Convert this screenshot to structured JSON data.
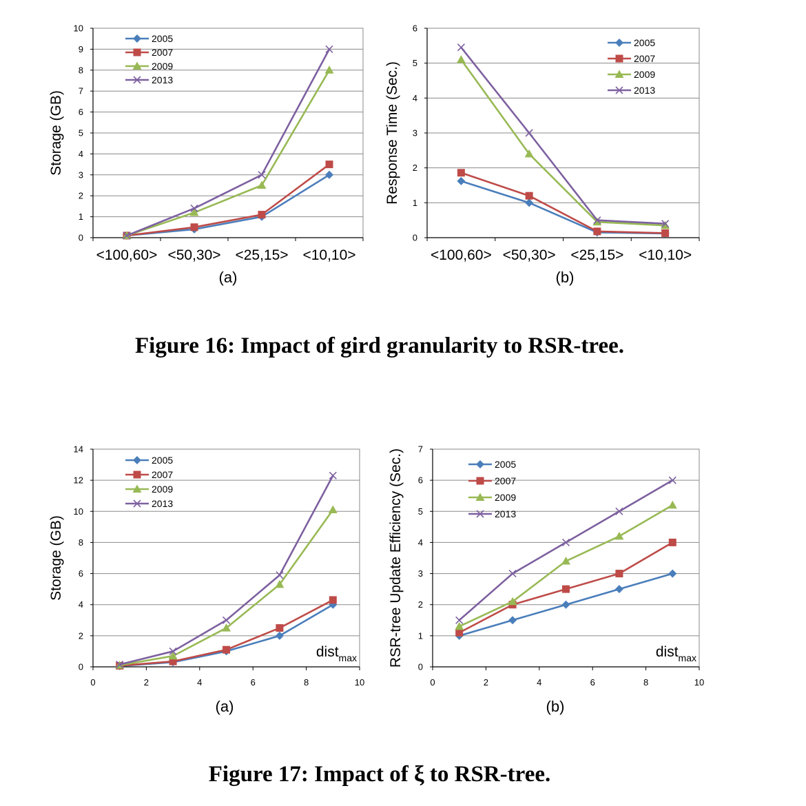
{
  "colors": {
    "2005": "#4a7ebb",
    "2007": "#be4b48",
    "2009": "#98b954",
    "2013": "#7d60a0"
  },
  "figure16": {
    "caption": "Figure 16: Impact of gird granularity to RSR-tree."
  },
  "figure17": {
    "caption": "Figure 17: Impact of ξ to RSR-tree."
  },
  "chart_data": [
    {
      "id": "fig16a",
      "type": "line",
      "subtitle": "(a)",
      "ylabel": "Storage (GB)",
      "xlabel": "",
      "categories": [
        "<100,60>",
        "<50,30>",
        "<25,15>",
        "<10,10>"
      ],
      "ylim": [
        0,
        10
      ],
      "yticks": [
        0,
        1,
        2,
        3,
        4,
        5,
        6,
        7,
        8,
        9,
        10
      ],
      "grid": true,
      "legend": "top-left",
      "series": [
        {
          "name": "2005",
          "marker": "diamond",
          "values": [
            0.1,
            0.4,
            1.0,
            3.0
          ]
        },
        {
          "name": "2007",
          "marker": "square",
          "values": [
            0.1,
            0.5,
            1.1,
            3.5
          ]
        },
        {
          "name": "2009",
          "marker": "triangle",
          "values": [
            0.1,
            1.2,
            2.5,
            8.0
          ]
        },
        {
          "name": "2013",
          "marker": "x",
          "values": [
            0.1,
            1.4,
            3.0,
            9.0
          ]
        }
      ]
    },
    {
      "id": "fig16b",
      "type": "line",
      "subtitle": "(b)",
      "ylabel": "Response Time (Sec.)",
      "xlabel": "",
      "categories": [
        "<100,60>",
        "<50,30>",
        "<25,15>",
        "<10,10>"
      ],
      "ylim": [
        0,
        6
      ],
      "yticks": [
        0,
        1,
        2,
        3,
        4,
        5,
        6
      ],
      "grid": true,
      "legend": "top-right",
      "series": [
        {
          "name": "2005",
          "marker": "diamond",
          "values": [
            1.62,
            1.0,
            0.15,
            0.12
          ]
        },
        {
          "name": "2007",
          "marker": "square",
          "values": [
            1.86,
            1.2,
            0.18,
            0.13
          ]
        },
        {
          "name": "2009",
          "marker": "triangle",
          "values": [
            5.1,
            2.4,
            0.45,
            0.35
          ]
        },
        {
          "name": "2013",
          "marker": "x",
          "values": [
            5.45,
            3.0,
            0.5,
            0.4
          ]
        }
      ]
    },
    {
      "id": "fig17a",
      "type": "scatter",
      "subtitle": "(a)",
      "ylabel": "Storage (GB)",
      "annotation": {
        "main": "dist",
        "sub": "max"
      },
      "x": [
        1,
        3,
        5,
        7,
        9
      ],
      "xlim": [
        0,
        10
      ],
      "xticks": [
        0,
        2,
        4,
        6,
        8,
        10
      ],
      "ylim": [
        0,
        14
      ],
      "yticks": [
        0,
        2,
        4,
        6,
        8,
        10,
        12,
        14
      ],
      "grid": true,
      "legend": "top-left",
      "series": [
        {
          "name": "2005",
          "marker": "diamond",
          "values": [
            0.05,
            0.3,
            1.0,
            2.0,
            4.0
          ]
        },
        {
          "name": "2007",
          "marker": "square",
          "values": [
            0.07,
            0.35,
            1.1,
            2.5,
            4.3
          ]
        },
        {
          "name": "2009",
          "marker": "triangle",
          "values": [
            0.1,
            0.7,
            2.5,
            5.3,
            10.1
          ]
        },
        {
          "name": "2013",
          "marker": "x",
          "values": [
            0.15,
            1.0,
            3.0,
            5.9,
            12.3
          ]
        }
      ]
    },
    {
      "id": "fig17b",
      "type": "scatter",
      "subtitle": "(b)",
      "ylabel": "RSR-tree Update Efficiency (Sec.)",
      "annotation": {
        "main": "dist",
        "sub": "max"
      },
      "x": [
        1,
        3,
        5,
        7,
        9
      ],
      "xlim": [
        0,
        10
      ],
      "xticks": [
        0,
        2,
        4,
        6,
        8,
        10
      ],
      "ylim": [
        0,
        7
      ],
      "yticks": [
        0,
        1,
        2,
        3,
        4,
        5,
        6,
        7
      ],
      "grid": true,
      "legend": "top-left",
      "series": [
        {
          "name": "2005",
          "marker": "diamond",
          "values": [
            1.0,
            1.5,
            2.0,
            2.5,
            3.0
          ]
        },
        {
          "name": "2007",
          "marker": "square",
          "values": [
            1.1,
            2.0,
            2.5,
            3.0,
            4.0
          ]
        },
        {
          "name": "2009",
          "marker": "triangle",
          "values": [
            1.3,
            2.1,
            3.4,
            4.2,
            5.2
          ]
        },
        {
          "name": "2013",
          "marker": "x",
          "values": [
            1.5,
            3.0,
            4.0,
            5.0,
            6.0
          ]
        }
      ]
    }
  ]
}
